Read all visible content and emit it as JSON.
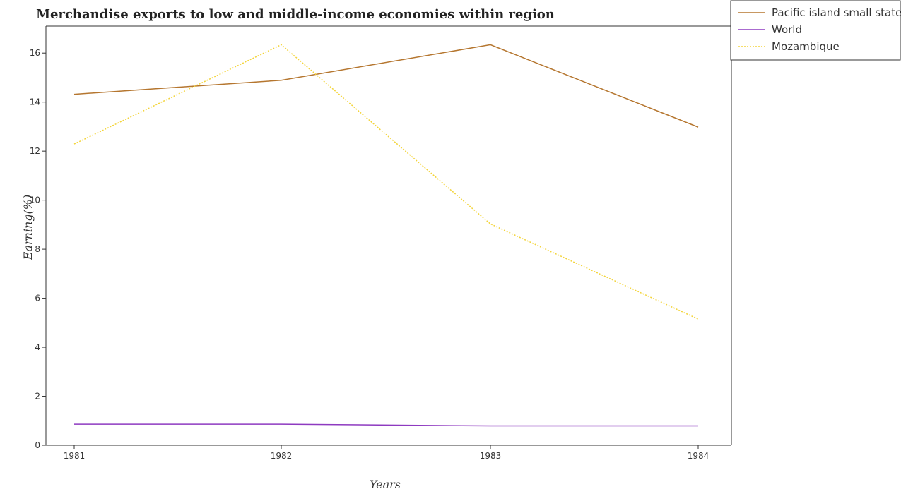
{
  "chart_data": {
    "type": "line",
    "title": "Merchandise exports to low and middle-income economies within region",
    "xlabel": "Years",
    "ylabel": "Earning(%)",
    "categories": [
      "1981",
      "1982",
      "1983",
      "1984"
    ],
    "ylim": [
      0,
      17.1
    ],
    "yticks": [
      0,
      2,
      4,
      6,
      8,
      10,
      12,
      14,
      16
    ],
    "series": [
      {
        "name": "Pacific island small states",
        "color": "#b5762f",
        "dash": "solid",
        "values": [
          14.32,
          14.89,
          16.34,
          12.98
        ]
      },
      {
        "name": "World",
        "color": "#8e3ac0",
        "dash": "solid",
        "values": [
          0.86,
          0.86,
          0.79,
          0.79
        ]
      },
      {
        "name": "Mozambique",
        "color": "#f3d43a",
        "dash": "dotted",
        "values": [
          12.29,
          16.34,
          9.03,
          5.15
        ]
      }
    ],
    "grid": false,
    "legend": "top-right"
  }
}
